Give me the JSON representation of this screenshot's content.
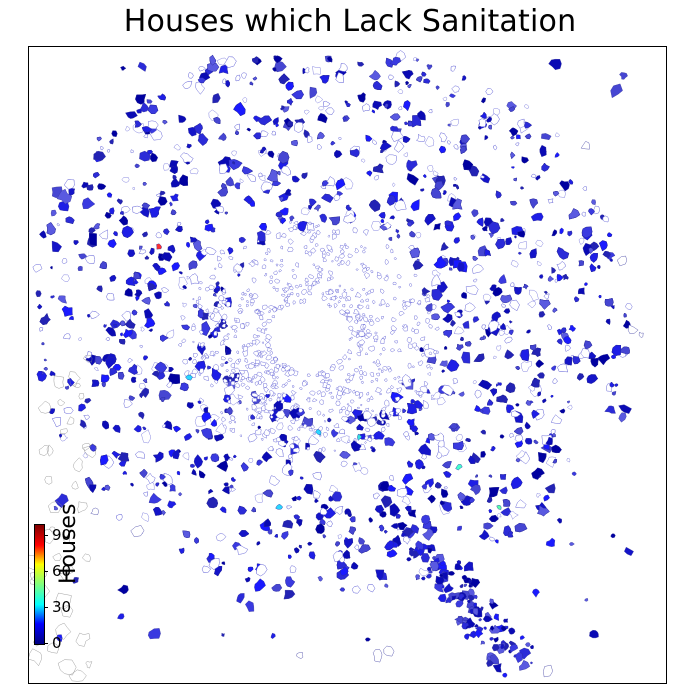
{
  "title": "Houses which Lack Sanitation",
  "colorbar": {
    "label": "Houses",
    "min": 0,
    "max": 100,
    "ticks": [
      "0",
      "30",
      "60",
      "90"
    ],
    "colors": [
      "#00007f",
      "#0000ff",
      "#00ffff",
      "#7fff7f",
      "#ffff00",
      "#ff0000",
      "#7f0000"
    ]
  },
  "map_style": {
    "dominant_color": "#1a1acc",
    "outline_color": "#888888"
  }
}
